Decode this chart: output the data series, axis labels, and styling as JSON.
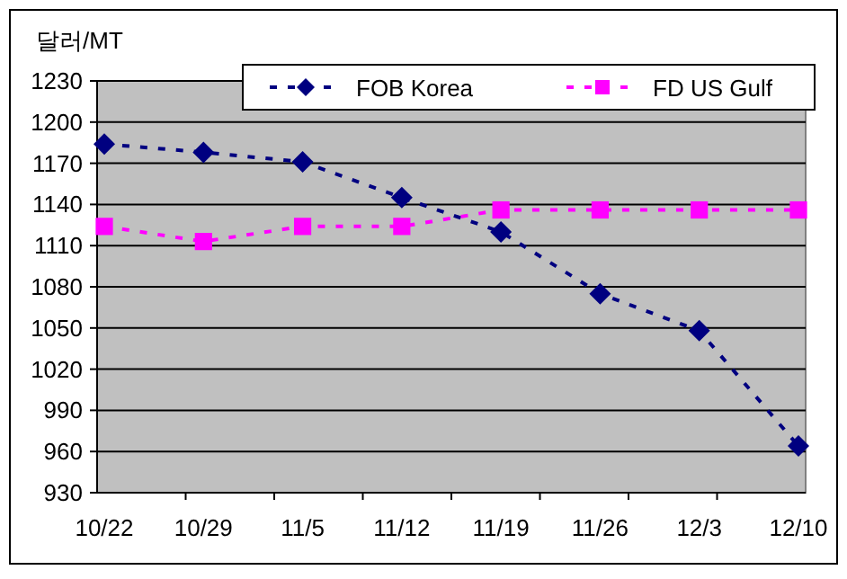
{
  "chart_data": {
    "type": "line",
    "ylabel": "달러/MT",
    "categories": [
      "10/22",
      "10/29",
      "11/5",
      "11/12",
      "11/19",
      "11/26",
      "12/3",
      "12/10"
    ],
    "series": [
      {
        "name": "FOB Korea",
        "color": "#000080",
        "marker": "diamond",
        "values": [
          1184,
          1178,
          1171,
          1145,
          1120,
          1075,
          1048,
          964
        ]
      },
      {
        "name": "FD US Gulf",
        "color": "#ff00ff",
        "marker": "square",
        "values": [
          1124,
          1113,
          1124,
          1124,
          1136,
          1136,
          1136,
          1136
        ]
      }
    ],
    "ylim": [
      930,
      1230
    ],
    "yticks": [
      930,
      960,
      990,
      1020,
      1050,
      1080,
      1110,
      1140,
      1170,
      1200,
      1230
    ],
    "grid": "y",
    "legend": "top",
    "line_style": "dashed"
  }
}
